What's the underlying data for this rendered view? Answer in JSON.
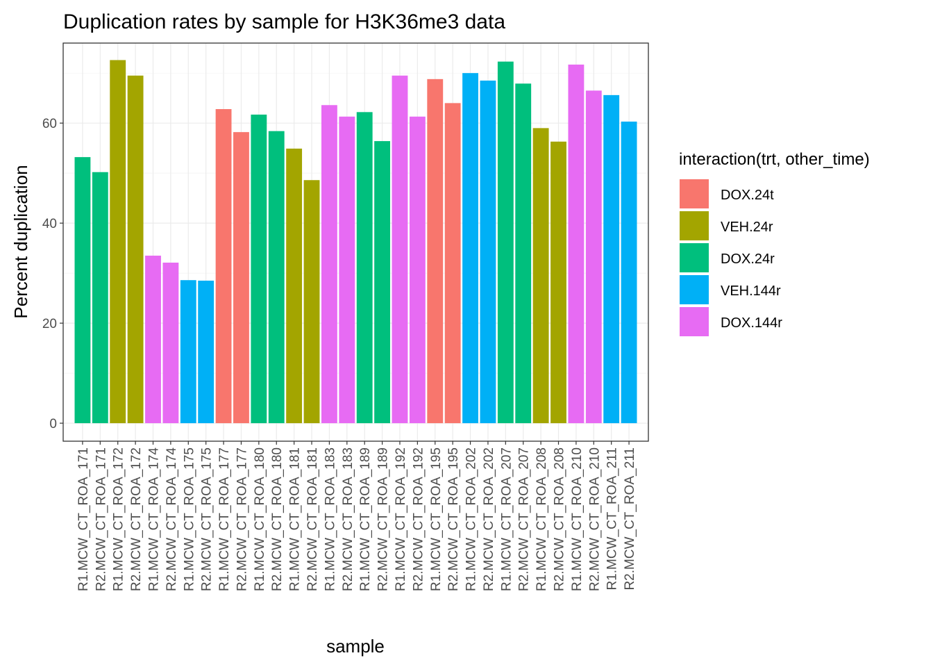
{
  "chart_data": {
    "type": "bar",
    "title": "Duplication rates by sample for H3K36me3 data",
    "xlabel": "sample",
    "ylabel": "Percent duplication",
    "ylim": [
      -3.6,
      76
    ],
    "yticks": [
      0,
      20,
      40,
      60
    ],
    "grid": true,
    "legend": {
      "title": "interaction(trt, other_time)",
      "position": "right",
      "entries": [
        {
          "label": "DOX.24t",
          "color": "#F8766D"
        },
        {
          "label": "VEH.24r",
          "color": "#A3A500"
        },
        {
          "label": "DOX.24r",
          "color": "#00BF7D"
        },
        {
          "label": "VEH.144r",
          "color": "#00B0F6"
        },
        {
          "label": "DOX.144r",
          "color": "#E76BF3"
        }
      ]
    },
    "categories": [
      "R1.MCW_CT_ROA_171",
      "R2.MCW_CT_ROA_171",
      "R1.MCW_CT_ROA_172",
      "R2.MCW_CT_ROA_172",
      "R1.MCW_CT_ROA_174",
      "R2.MCW_CT_ROA_174",
      "R1.MCW_CT_ROA_175",
      "R2.MCW_CT_ROA_175",
      "R1.MCW_CT_ROA_177",
      "R2.MCW_CT_ROA_177",
      "R1.MCW_CT_ROA_180",
      "R2.MCW_CT_ROA_180",
      "R1.MCW_CT_ROA_181",
      "R2.MCW_CT_ROA_181",
      "R1.MCW_CT_ROA_183",
      "R2.MCW_CT_ROA_183",
      "R1.MCW_CT_ROA_189",
      "R2.MCW_CT_ROA_189",
      "R1.MCW_CT_ROA_192",
      "R2.MCW_CT_ROA_192",
      "R1.MCW_CT_ROA_195",
      "R2.MCW_CT_ROA_195",
      "R1.MCW_CT_ROA_202",
      "R2.MCW_CT_ROA_202",
      "R1.MCW_CT_ROA_207",
      "R2.MCW_CT_ROA_207",
      "R1.MCW_CT_ROA_208",
      "R2.MCW_CT_ROA_208",
      "R1.MCW_CT_ROA_210",
      "R2.MCW_CT_ROA_210",
      "R1.MCW_CT_ROA_211",
      "R2.MCW_CT_ROA_211"
    ],
    "values": [
      53.2,
      50.2,
      72.6,
      69.5,
      33.5,
      32.1,
      28.6,
      28.5,
      62.8,
      58.2,
      61.7,
      58.4,
      54.9,
      48.6,
      63.6,
      61.3,
      62.2,
      56.4,
      69.5,
      61.3,
      68.8,
      64.0,
      70.0,
      68.5,
      72.3,
      67.9,
      59.0,
      56.3,
      71.7,
      66.5,
      65.6,
      60.3
    ],
    "groups": [
      "DOX.24r",
      "DOX.24r",
      "VEH.24r",
      "VEH.24r",
      "DOX.144r",
      "DOX.144r",
      "VEH.144r",
      "VEH.144r",
      "DOX.24t",
      "DOX.24t",
      "DOX.24r",
      "DOX.24r",
      "VEH.24r",
      "VEH.24r",
      "DOX.144r",
      "DOX.144r",
      "DOX.24r",
      "DOX.24r",
      "DOX.144r",
      "DOX.144r",
      "DOX.24t",
      "DOX.24t",
      "VEH.144r",
      "VEH.144r",
      "DOX.24r",
      "DOX.24r",
      "VEH.24r",
      "VEH.24r",
      "DOX.144r",
      "DOX.144r",
      "VEH.144r",
      "VEH.144r"
    ]
  }
}
